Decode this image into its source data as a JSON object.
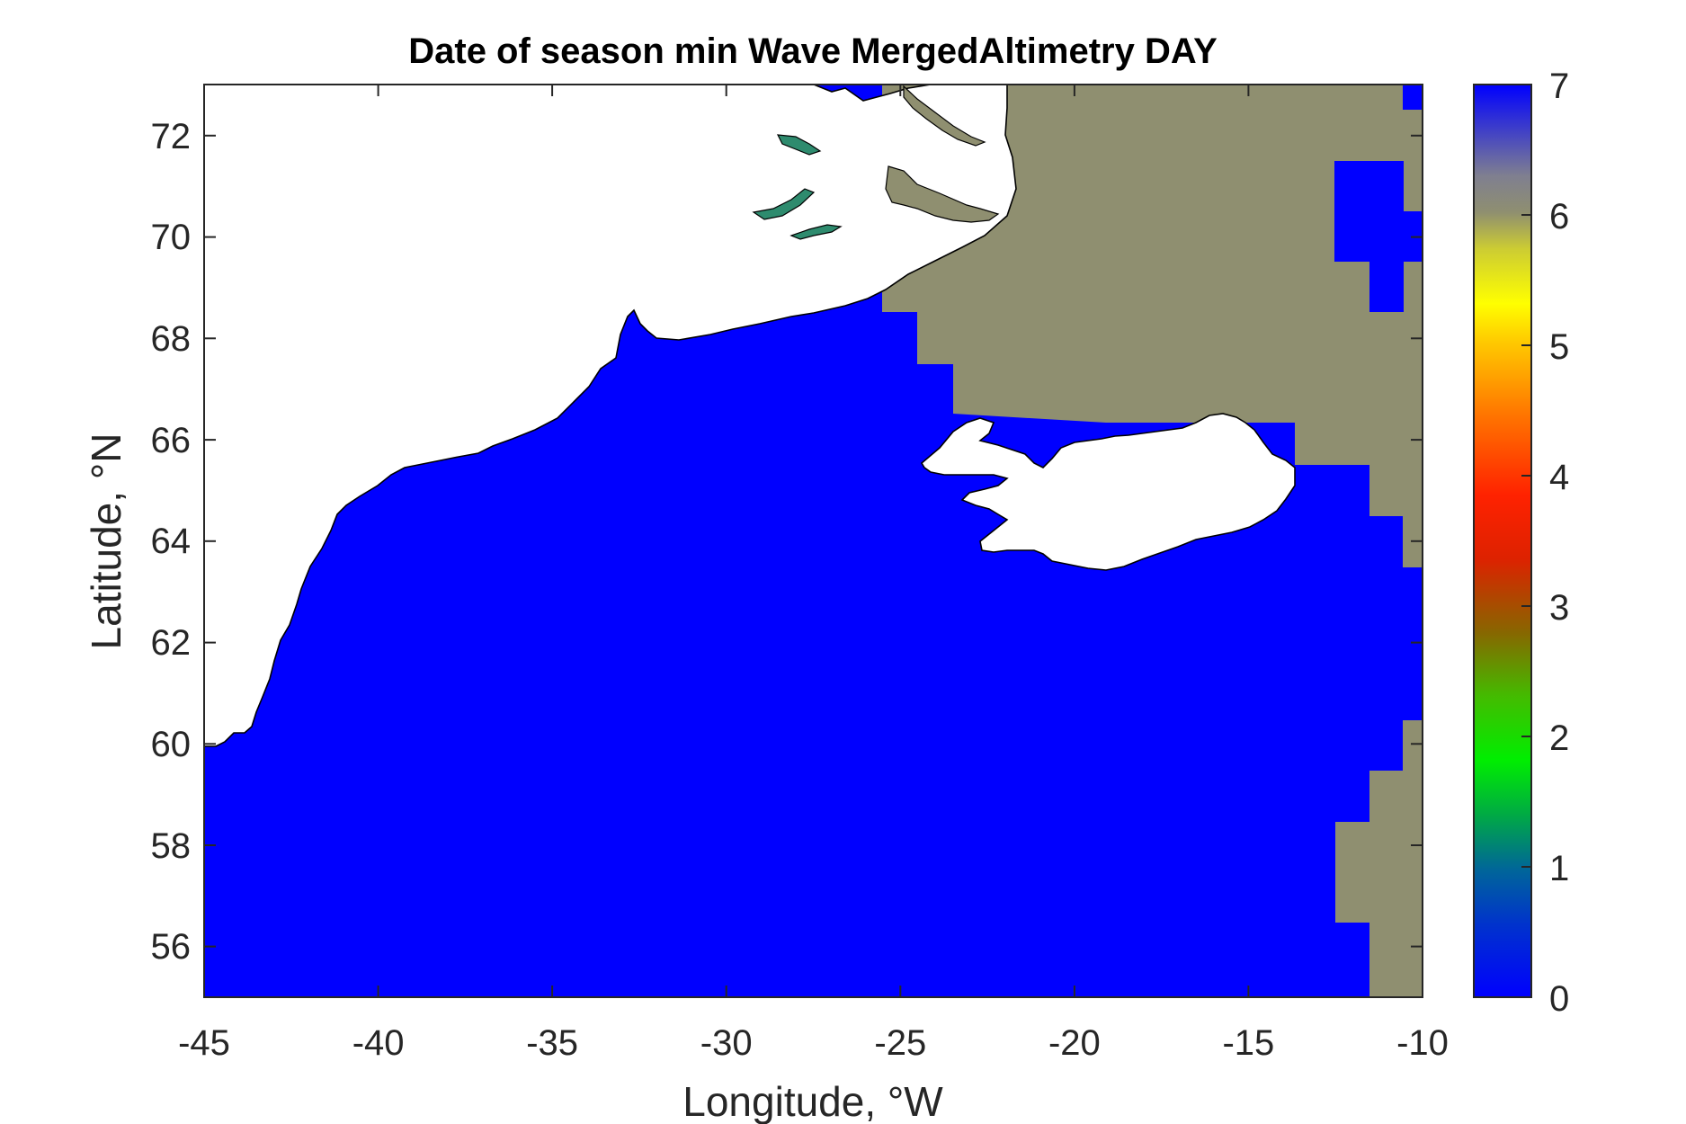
{
  "chart_data": {
    "type": "heatmap",
    "title": "Date of season min Wave MergedAltimetry DAY",
    "xlabel": "Longitude, °W",
    "ylabel": "Latitude, °N",
    "xlim": [
      -45,
      -10
    ],
    "ylim": [
      55,
      73
    ],
    "xticks": [
      "-45",
      "-40",
      "-35",
      "-30",
      "-25",
      "-20",
      "-15",
      "-10"
    ],
    "yticks": [
      "56",
      "58",
      "60",
      "62",
      "64",
      "66",
      "68",
      "70",
      "72"
    ],
    "colorbar": {
      "range": [
        0,
        7
      ],
      "ticks": [
        "0",
        "1",
        "2",
        "3",
        "4",
        "5",
        "6",
        "7"
      ],
      "colormap": "blue-green-red-yellow-gray-blue"
    },
    "regions": [
      {
        "name": "ocean",
        "value": 0,
        "color": "#0000ff"
      },
      {
        "name": "northeast sector",
        "value": 6,
        "color": "#8f8f70"
      },
      {
        "name": "land",
        "value": null,
        "color": "#ffffff"
      },
      {
        "name": "fjords",
        "value": 1,
        "color": "#2e8b6e"
      }
    ],
    "grid": false
  }
}
